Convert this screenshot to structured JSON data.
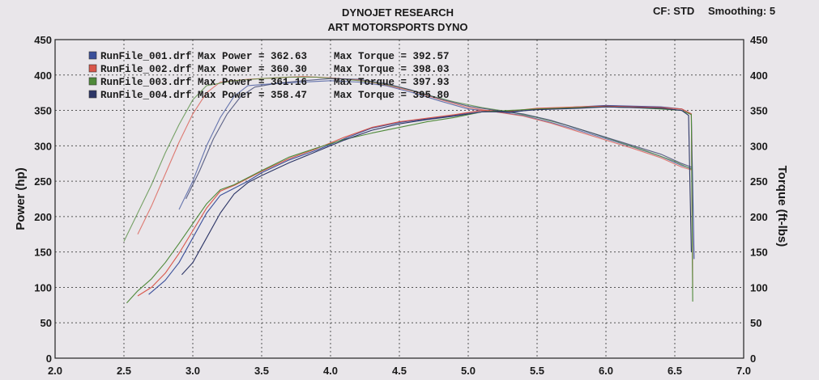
{
  "header": {
    "line1": "DYNOJET RESEARCH",
    "line2": "ART MOTORSPORTS DYNO",
    "cf": "CF: STD",
    "smoothing": "Smoothing: 5"
  },
  "chart_data": {
    "type": "line",
    "title": "DYNOJET RESEARCH",
    "subtitle": "ART MOTORSPORTS DYNO",
    "xlabel": "",
    "ylabel": "Power (hp)",
    "ylabel_right": "Torque (ft-lbs)",
    "xlim": [
      2.0,
      7.0
    ],
    "ylim": [
      0,
      450
    ],
    "xticks": [
      "2.0",
      "2.5",
      "3.0",
      "3.5",
      "4.0",
      "4.5",
      "5.0",
      "5.5",
      "6.0",
      "6.5",
      "7.0"
    ],
    "yticks": [
      "0",
      "50",
      "100",
      "150",
      "200",
      "250",
      "300",
      "350",
      "400",
      "450"
    ],
    "grid": true,
    "legend_position": "top-left",
    "series": [
      {
        "name": "RunFile_001.drf",
        "color": "#3a4f9a",
        "legend_text": "RunFile_001.drf Max Power = 362.63",
        "torque_text": "Max Torque = 392.57",
        "power": [
          [
            2.68,
            90
          ],
          [
            2.8,
            110
          ],
          [
            2.9,
            135
          ],
          [
            3.0,
            170
          ],
          [
            3.1,
            205
          ],
          [
            3.2,
            230
          ],
          [
            3.3,
            240
          ],
          [
            3.4,
            250
          ],
          [
            3.5,
            262
          ],
          [
            3.7,
            280
          ],
          [
            3.9,
            294
          ],
          [
            4.1,
            310
          ],
          [
            4.3,
            325
          ],
          [
            4.5,
            333
          ],
          [
            4.7,
            338
          ],
          [
            4.9,
            343
          ],
          [
            5.1,
            350
          ],
          [
            5.3,
            347
          ],
          [
            5.5,
            352
          ],
          [
            5.8,
            355
          ],
          [
            6.0,
            357
          ],
          [
            6.2,
            356
          ],
          [
            6.4,
            355
          ],
          [
            6.55,
            352
          ],
          [
            6.62,
            345
          ],
          [
            6.64,
            140
          ]
        ],
        "torque": [
          [
            2.9,
            210
          ],
          [
            3.0,
            250
          ],
          [
            3.1,
            300
          ],
          [
            3.2,
            340
          ],
          [
            3.3,
            370
          ],
          [
            3.4,
            385
          ],
          [
            3.6,
            388
          ],
          [
            3.8,
            390
          ],
          [
            4.0,
            392
          ],
          [
            4.2,
            390
          ],
          [
            4.4,
            385
          ],
          [
            4.6,
            375
          ],
          [
            4.8,
            363
          ],
          [
            5.0,
            352
          ],
          [
            5.2,
            348
          ],
          [
            5.4,
            343
          ],
          [
            5.6,
            333
          ],
          [
            5.8,
            322
          ],
          [
            6.0,
            310
          ],
          [
            6.2,
            298
          ],
          [
            6.4,
            285
          ],
          [
            6.55,
            272
          ],
          [
            6.62,
            268
          ]
        ]
      },
      {
        "name": "RunFile_002.drf",
        "color": "#d9564a",
        "legend_text": "RunFile_002.drf Max Power = 360.30",
        "torque_text": "Max Torque = 398.03",
        "power": [
          [
            2.6,
            88
          ],
          [
            2.7,
            100
          ],
          [
            2.8,
            120
          ],
          [
            2.9,
            148
          ],
          [
            3.0,
            180
          ],
          [
            3.1,
            212
          ],
          [
            3.2,
            236
          ],
          [
            3.3,
            244
          ],
          [
            3.4,
            254
          ],
          [
            3.5,
            264
          ],
          [
            3.7,
            282
          ],
          [
            3.9,
            296
          ],
          [
            4.1,
            312
          ],
          [
            4.3,
            326
          ],
          [
            4.5,
            334
          ],
          [
            4.7,
            339
          ],
          [
            4.9,
            344
          ],
          [
            5.1,
            350
          ],
          [
            5.3,
            349
          ],
          [
            5.5,
            353
          ],
          [
            5.8,
            355
          ],
          [
            6.0,
            356
          ],
          [
            6.2,
            355
          ],
          [
            6.4,
            354
          ],
          [
            6.55,
            352
          ],
          [
            6.62,
            345
          ],
          [
            6.63,
            100
          ]
        ],
        "torque": [
          [
            2.6,
            175
          ],
          [
            2.7,
            215
          ],
          [
            2.8,
            260
          ],
          [
            2.9,
            305
          ],
          [
            3.0,
            345
          ],
          [
            3.1,
            375
          ],
          [
            3.2,
            390
          ],
          [
            3.4,
            394
          ],
          [
            3.6,
            396
          ],
          [
            3.8,
            398
          ],
          [
            4.0,
            396
          ],
          [
            4.2,
            393
          ],
          [
            4.4,
            386
          ],
          [
            4.6,
            377
          ],
          [
            4.8,
            365
          ],
          [
            5.0,
            354
          ],
          [
            5.2,
            348
          ],
          [
            5.4,
            342
          ],
          [
            5.6,
            332
          ],
          [
            5.8,
            320
          ],
          [
            6.0,
            308
          ],
          [
            6.2,
            296
          ],
          [
            6.4,
            283
          ],
          [
            6.55,
            270
          ],
          [
            6.62,
            266
          ]
        ]
      },
      {
        "name": "RunFile_003.drf",
        "color": "#4f8a3a",
        "legend_text": "RunFile_003.drf Max Power = 361.16",
        "torque_text": "Max Torque = 397.93",
        "power": [
          [
            2.52,
            78
          ],
          [
            2.6,
            95
          ],
          [
            2.7,
            112
          ],
          [
            2.8,
            135
          ],
          [
            2.9,
            162
          ],
          [
            3.0,
            190
          ],
          [
            3.1,
            218
          ],
          [
            3.2,
            238
          ],
          [
            3.3,
            245
          ],
          [
            3.4,
            255
          ],
          [
            3.5,
            265
          ],
          [
            3.7,
            284
          ],
          [
            3.9,
            297
          ],
          [
            4.1,
            309
          ],
          [
            4.3,
            318
          ],
          [
            4.5,
            326
          ],
          [
            4.7,
            334
          ],
          [
            4.9,
            340
          ],
          [
            5.1,
            348
          ],
          [
            5.3,
            350
          ],
          [
            5.5,
            352
          ],
          [
            5.8,
            354
          ],
          [
            6.0,
            355
          ],
          [
            6.2,
            354
          ],
          [
            6.4,
            352
          ],
          [
            6.55,
            350
          ],
          [
            6.62,
            344
          ],
          [
            6.63,
            80
          ]
        ],
        "torque": [
          [
            2.5,
            165
          ],
          [
            2.6,
            205
          ],
          [
            2.7,
            245
          ],
          [
            2.8,
            290
          ],
          [
            2.9,
            330
          ],
          [
            3.0,
            365
          ],
          [
            3.1,
            385
          ],
          [
            3.3,
            392
          ],
          [
            3.5,
            395
          ],
          [
            3.7,
            397
          ],
          [
            3.9,
            397
          ],
          [
            4.1,
            394
          ],
          [
            4.3,
            390
          ],
          [
            4.5,
            383
          ],
          [
            4.7,
            372
          ],
          [
            4.9,
            362
          ],
          [
            5.1,
            354
          ],
          [
            5.3,
            348
          ],
          [
            5.5,
            340
          ],
          [
            5.7,
            330
          ],
          [
            5.9,
            318
          ],
          [
            6.1,
            305
          ],
          [
            6.3,
            292
          ],
          [
            6.5,
            278
          ],
          [
            6.62,
            267
          ]
        ]
      },
      {
        "name": "RunFile_004.drf",
        "color": "#2c3566",
        "legend_text": "RunFile_004.drf Max Power = 358.47",
        "torque_text": "Max Torque = 395.80",
        "power": [
          [
            2.92,
            118
          ],
          [
            3.0,
            135
          ],
          [
            3.1,
            170
          ],
          [
            3.2,
            205
          ],
          [
            3.3,
            232
          ],
          [
            3.4,
            248
          ],
          [
            3.5,
            258
          ],
          [
            3.7,
            276
          ],
          [
            3.9,
            292
          ],
          [
            4.1,
            308
          ],
          [
            4.3,
            322
          ],
          [
            4.5,
            331
          ],
          [
            4.7,
            337
          ],
          [
            4.9,
            342
          ],
          [
            5.1,
            348
          ],
          [
            5.3,
            348
          ],
          [
            5.5,
            351
          ],
          [
            5.8,
            353
          ],
          [
            6.0,
            355
          ],
          [
            6.2,
            354
          ],
          [
            6.4,
            353
          ],
          [
            6.55,
            350
          ],
          [
            6.6,
            343
          ],
          [
            6.62,
            150
          ]
        ],
        "torque": [
          [
            2.95,
            225
          ],
          [
            3.05,
            265
          ],
          [
            3.15,
            310
          ],
          [
            3.25,
            345
          ],
          [
            3.35,
            370
          ],
          [
            3.45,
            383
          ],
          [
            3.6,
            388
          ],
          [
            3.8,
            392
          ],
          [
            4.0,
            395
          ],
          [
            4.2,
            394
          ],
          [
            4.4,
            388
          ],
          [
            4.6,
            378
          ],
          [
            4.8,
            366
          ],
          [
            5.0,
            356
          ],
          [
            5.2,
            350
          ],
          [
            5.4,
            345
          ],
          [
            5.6,
            336
          ],
          [
            5.8,
            324
          ],
          [
            6.0,
            312
          ],
          [
            6.2,
            300
          ],
          [
            6.4,
            288
          ],
          [
            6.55,
            275
          ],
          [
            6.62,
            270
          ]
        ]
      }
    ]
  }
}
